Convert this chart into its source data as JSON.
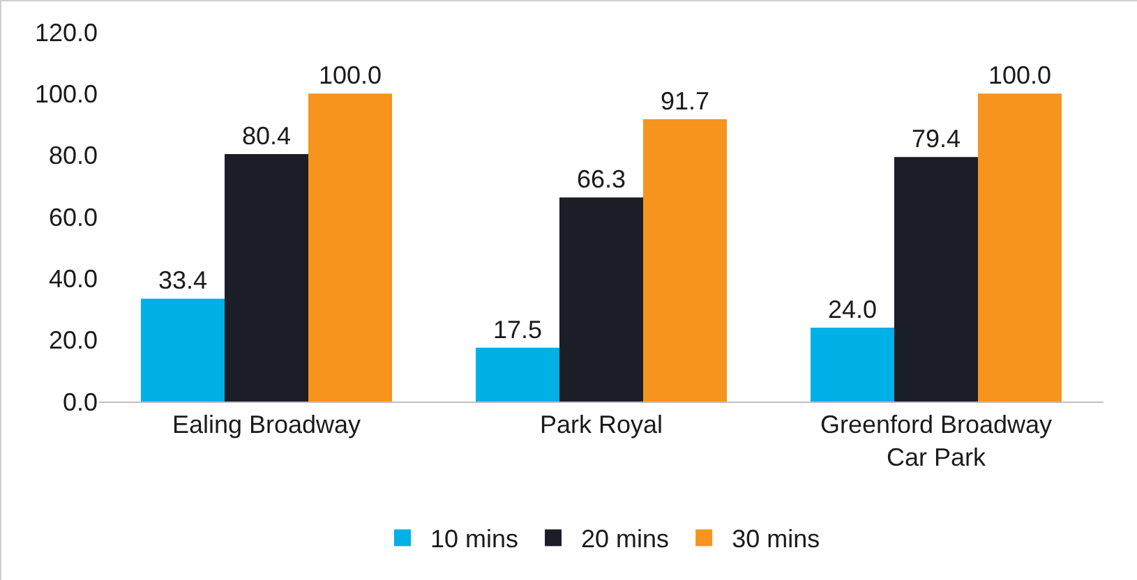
{
  "chart_data": {
    "type": "bar",
    "categories": [
      "Ealing Broadway",
      "Park Royal",
      "Greenford Broadway Car Park"
    ],
    "series": [
      {
        "name": "10 mins",
        "color": "#00b0e6",
        "values": [
          33.4,
          17.5,
          24.0
        ],
        "value_labels": [
          "33.4",
          "17.5",
          "24.0"
        ]
      },
      {
        "name": "20 mins",
        "color": "#1b1d27",
        "values": [
          80.4,
          66.3,
          79.4
        ],
        "value_labels": [
          "80.4",
          "66.3",
          "79.4"
        ]
      },
      {
        "name": "30 mins",
        "color": "#f7941d",
        "values": [
          100.0,
          91.7,
          100.0
        ],
        "value_labels": [
          "100.0",
          "91.7",
          "100.0"
        ]
      }
    ],
    "ylim": [
      0,
      120
    ],
    "yticks": [
      {
        "value": 0,
        "label": "0.0"
      },
      {
        "value": 20,
        "label": "20.0"
      },
      {
        "value": 40,
        "label": "40.0"
      },
      {
        "value": 60,
        "label": "60.0"
      },
      {
        "value": 80,
        "label": "80.0"
      },
      {
        "value": 100,
        "label": "100.0"
      },
      {
        "value": 120,
        "label": "120.0"
      }
    ],
    "grid": false,
    "legend": "bottom"
  }
}
